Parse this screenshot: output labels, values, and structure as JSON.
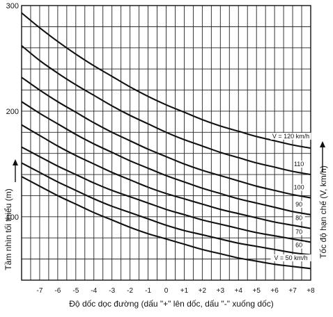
{
  "chart_data": {
    "type": "line",
    "xlabel": "Độ dốc dọc đường (dấu \"+\" lên dốc, dấu \"-\" xuống dốc)",
    "ylabel": "Tầm nhìn tối thiểu (m)",
    "y2label": "Tốc độ hạn chế (V, km/h)",
    "xlim": [
      -8,
      8
    ],
    "ylim": [
      40,
      300
    ],
    "x_ticks": [
      -7,
      -6,
      -5,
      -4,
      -3,
      -2,
      -1,
      0,
      1,
      2,
      3,
      4,
      5,
      6,
      7,
      8
    ],
    "x_tick_labels": [
      "-7",
      "-6",
      "-5",
      "-4",
      "-3",
      "-2",
      "-1",
      "0",
      "+1",
      "+2",
      "+3",
      "+4",
      "+5",
      "+6",
      "+7",
      "+8"
    ],
    "y_ticks": [
      100,
      200,
      300
    ],
    "y_tick_labels": [
      "100",
      "200",
      "300"
    ],
    "grid": true,
    "x": [
      -8,
      -7,
      -6,
      -5,
      -4,
      -3,
      -2,
      -1,
      0,
      1,
      2,
      3,
      4,
      5,
      6,
      7,
      8
    ],
    "series": [
      {
        "name": "V = 120 km/h",
        "values": [
          293,
          279,
          266,
          254,
          243,
          233,
          223,
          214,
          206,
          199,
          192,
          186,
          181,
          176,
          172,
          168,
          165
        ]
      },
      {
        "name": "110",
        "values": [
          262,
          248,
          236,
          225,
          215,
          205,
          196,
          188,
          180,
          173,
          167,
          161,
          156,
          151,
          147,
          143,
          140
        ]
      },
      {
        "name": "100",
        "values": [
          232,
          220,
          209,
          199,
          189,
          180,
          172,
          164,
          157,
          150,
          144,
          139,
          134,
          129,
          125,
          121,
          118
        ]
      },
      {
        "name": "90",
        "values": [
          209,
          198,
          188,
          178,
          169,
          161,
          153,
          146,
          139,
          133,
          127,
          122,
          117,
          113,
          109,
          105,
          102
        ]
      },
      {
        "name": "80",
        "values": [
          187,
          177,
          167,
          158,
          150,
          142,
          135,
          128,
          122,
          117,
          112,
          107,
          103,
          99,
          95,
          92,
          89
        ]
      },
      {
        "name": "70",
        "values": [
          166,
          157,
          148,
          140,
          132,
          125,
          119,
          113,
          107,
          102,
          97,
          93,
          89,
          85,
          82,
          79,
          76
        ]
      },
      {
        "name": "60",
        "values": [
          151,
          142,
          133,
          125,
          117,
          110,
          104,
          98,
          92,
          87,
          83,
          79,
          75,
          72,
          69,
          66,
          64
        ]
      },
      {
        "name": "V = 50 km/h",
        "values": [
          138,
          129,
          120,
          112,
          104,
          97,
          90,
          84,
          79,
          74,
          69,
          65,
          61,
          58,
          55,
          53,
          51
        ]
      }
    ]
  }
}
